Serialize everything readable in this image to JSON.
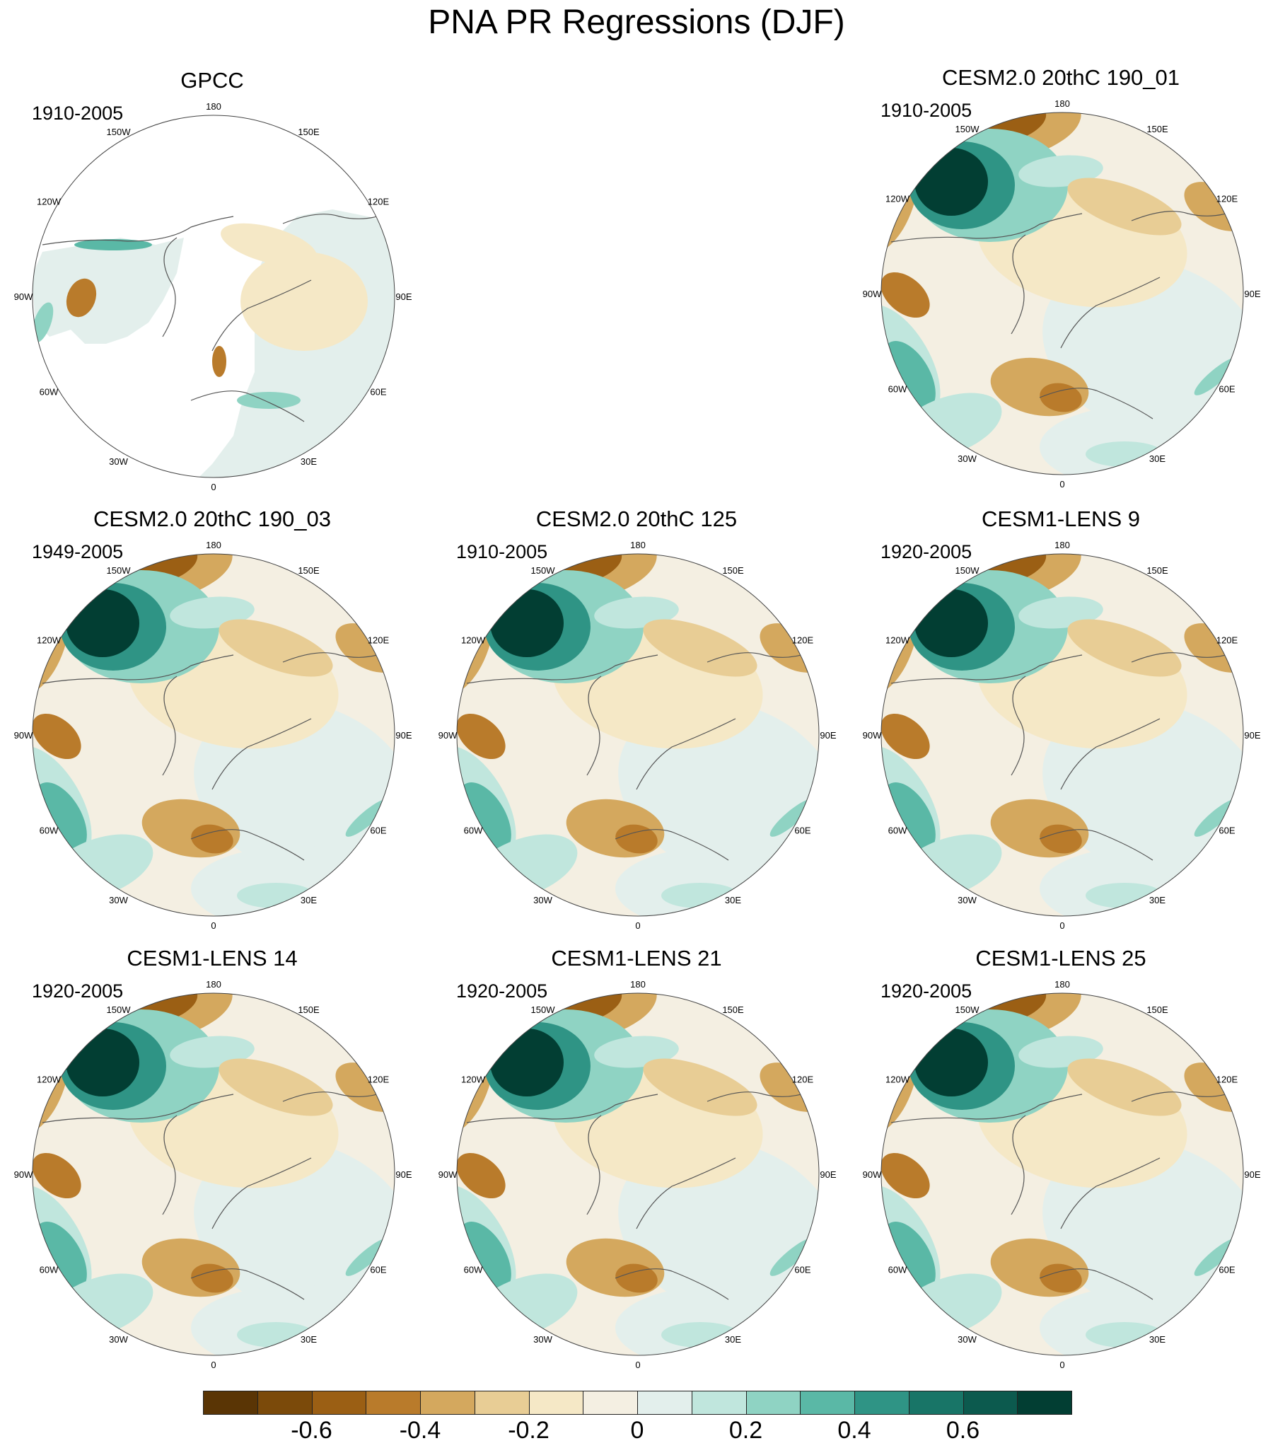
{
  "title": "PNA PR Regressions (DJF)",
  "panels": [
    {
      "title": "GPCC",
      "period": "1910-2005",
      "pattern": "obs"
    },
    {
      "title": "CESM2.0 20thC 190_01",
      "period": "1910-2005",
      "pattern": "model"
    },
    {
      "title": "CESM2.0 20thC 190_03",
      "period": "1949-2005",
      "pattern": "model"
    },
    {
      "title": "CESM2.0 20thC 125",
      "period": "1910-2005",
      "pattern": "model"
    },
    {
      "title": "CESM1-LENS 9",
      "period": "1920-2005",
      "pattern": "model"
    },
    {
      "title": "CESM1-LENS 14",
      "period": "1920-2005",
      "pattern": "model"
    },
    {
      "title": "CESM1-LENS 21",
      "period": "1920-2005",
      "pattern": "model"
    },
    {
      "title": "CESM1-LENS 25",
      "period": "1920-2005",
      "pattern": "model"
    }
  ],
  "longitude_labels": {
    "lon_180": "180",
    "lon_150e": "150E",
    "lon_120e": "120E",
    "lon_90e": "90E",
    "lon_60e": "60E",
    "lon_30e": "30E",
    "lon_0": "0",
    "lon_30w": "30W",
    "lon_60w": "60W",
    "lon_90w": "90W",
    "lon_120w": "120W",
    "lon_150w": "150W"
  },
  "colorbar": {
    "colors": [
      "#5a3505",
      "#7b4a0a",
      "#9b5f14",
      "#b97b2b",
      "#d4a85e",
      "#e8cd95",
      "#f5e8c6",
      "#f4efe2",
      "#e3efec",
      "#c0e6dd",
      "#8fd3c3",
      "#5ab8a6",
      "#2f9485",
      "#187567",
      "#0c5a4e",
      "#023e33"
    ],
    "labels": [
      "-0.6",
      "-0.4",
      "-0.2",
      "0",
      "0.2",
      "0.4",
      "0.6"
    ],
    "label_values": [
      -0.6,
      -0.4,
      -0.2,
      0,
      0.2,
      0.4,
      0.6
    ],
    "min": -0.8,
    "max": 0.8
  }
}
